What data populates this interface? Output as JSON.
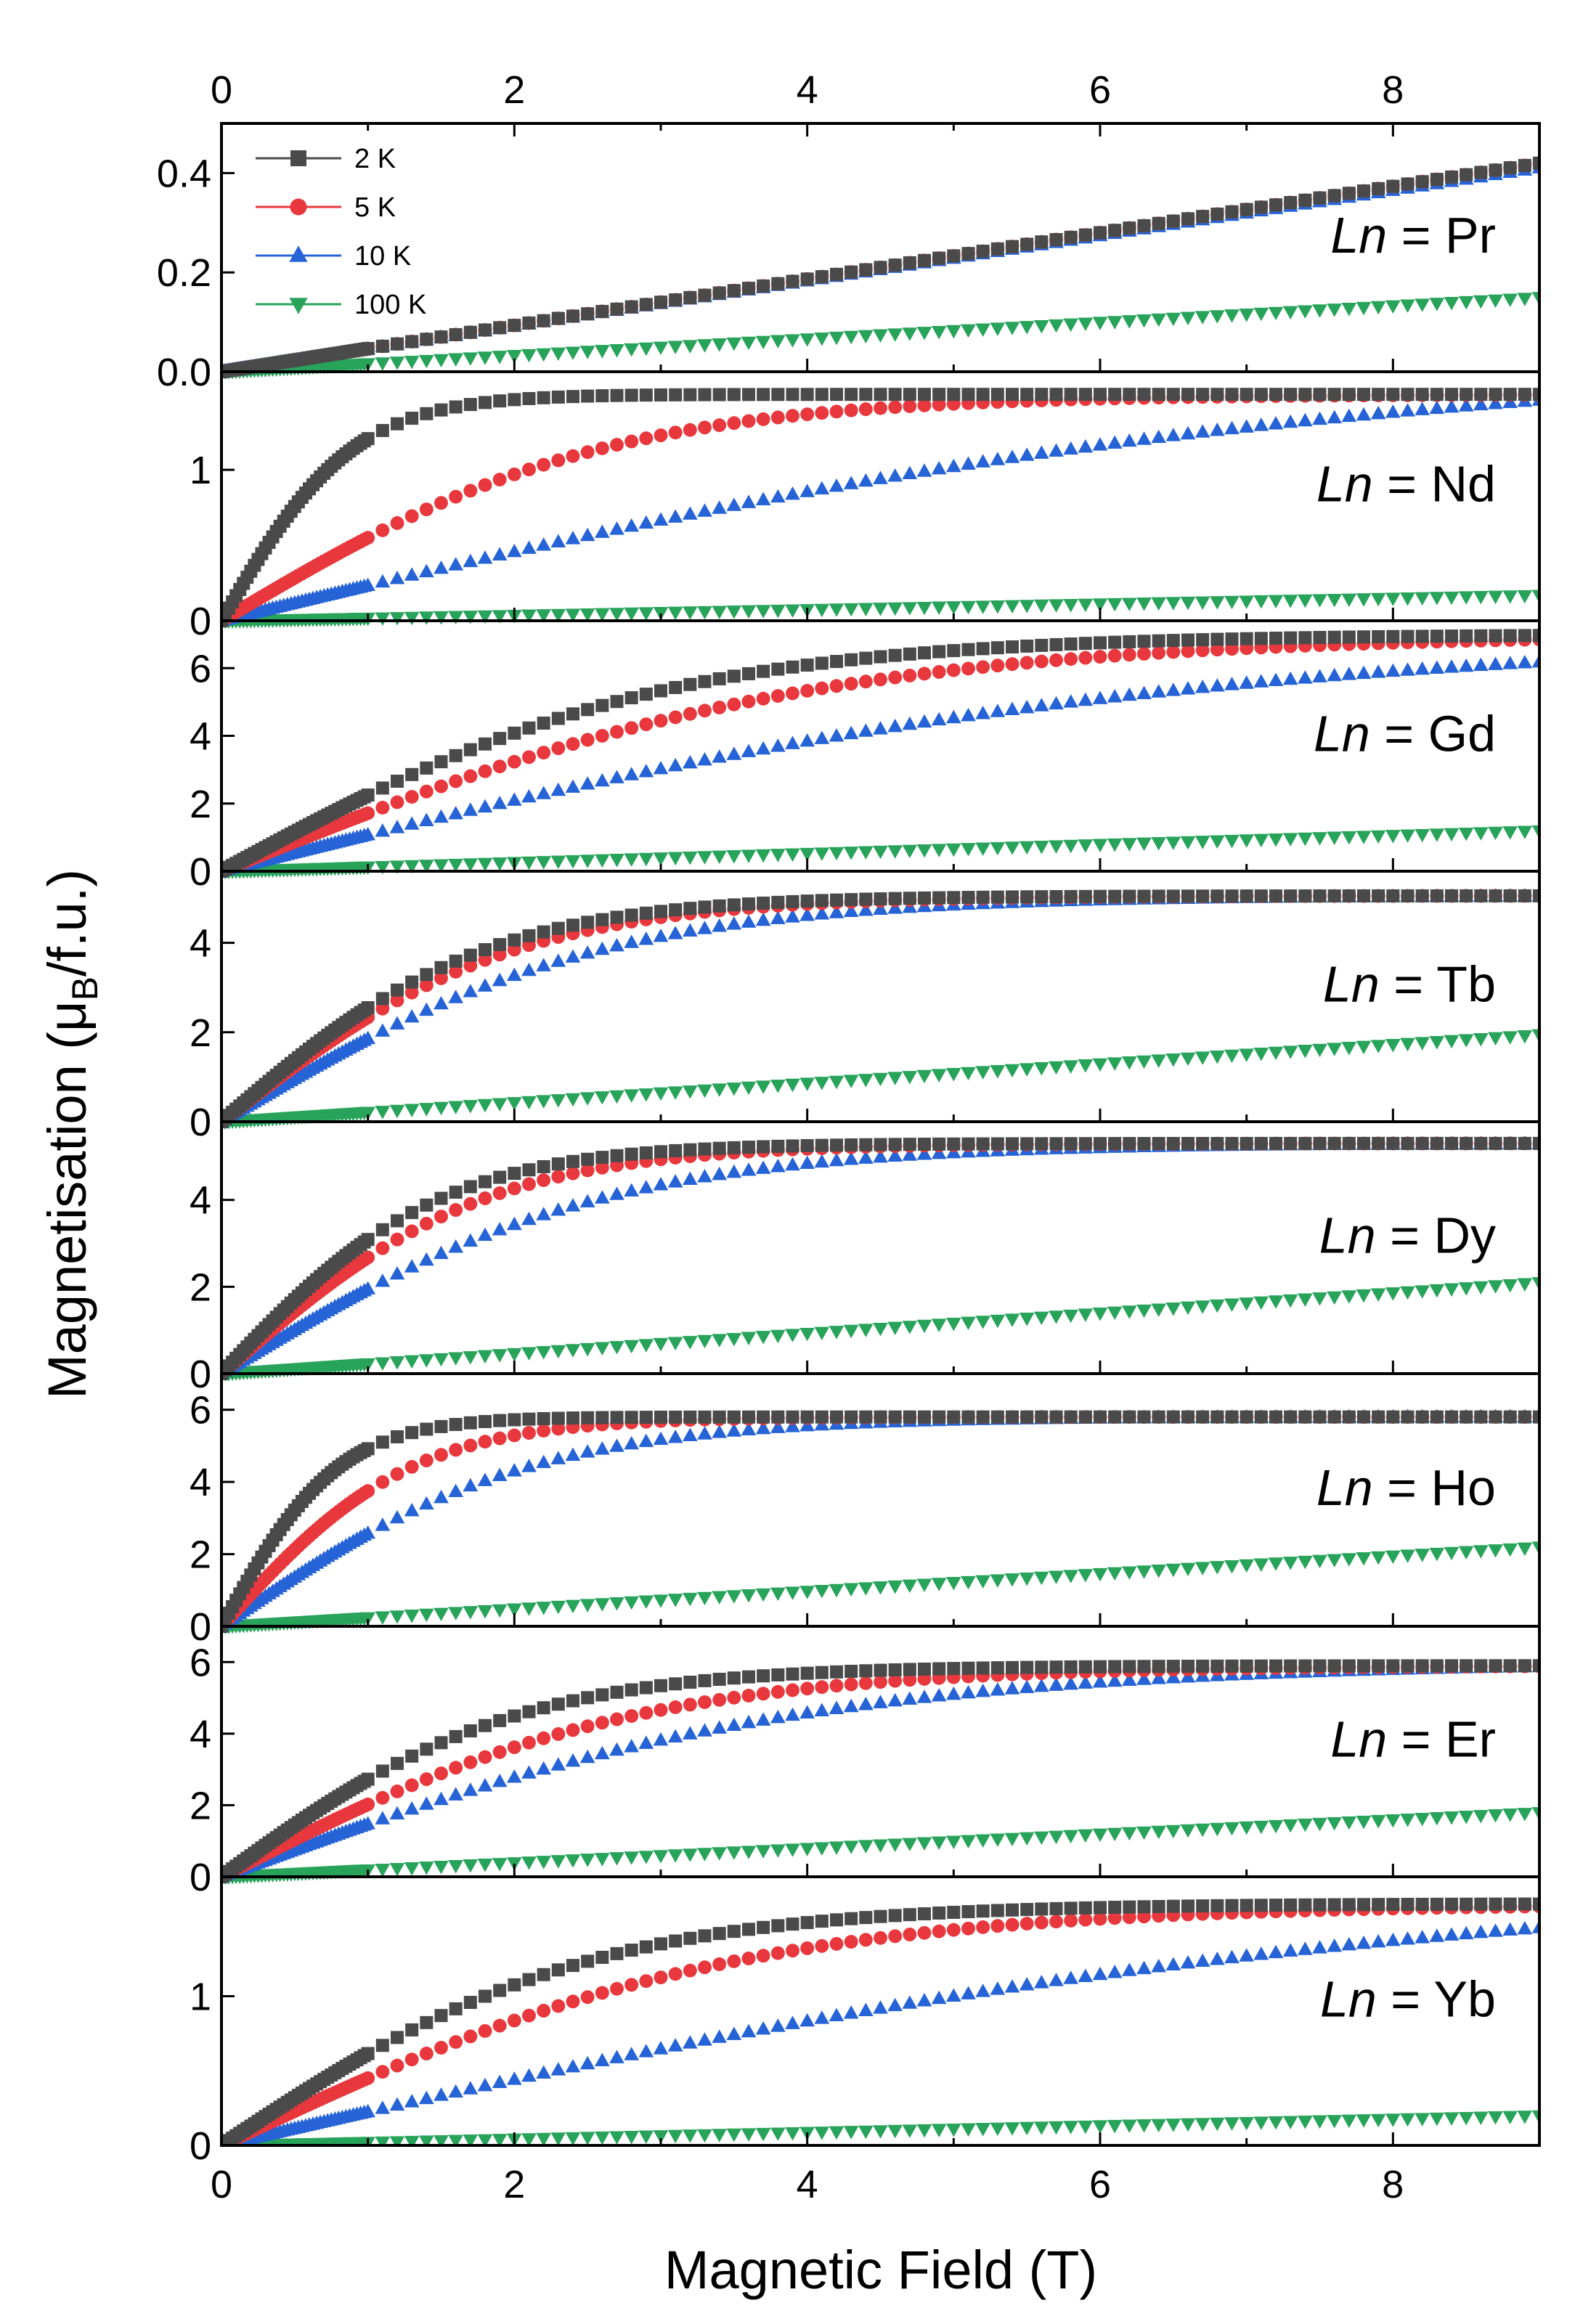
{
  "chart_data": {
    "type": "scatter",
    "xlabel": "Magnetic Field (T)",
    "ylabel_main": "Magnetisation (μ",
    "ylabel_sub": "B",
    "ylabel_tail": "/f.u.)",
    "xlim": [
      0,
      9
    ],
    "x_ticks": [
      0,
      2,
      4,
      6,
      8
    ],
    "series_styles": [
      {
        "name": "2 K",
        "color": "#4a4a4a",
        "marker": "square"
      },
      {
        "name": "5 K",
        "color": "#e8383d",
        "marker": "circle"
      },
      {
        "name": "10 K",
        "color": "#2563d6",
        "marker": "triangle-up"
      },
      {
        "name": "100 K",
        "color": "#27a35a",
        "marker": "triangle-down"
      }
    ],
    "panels": [
      {
        "label_prefix": "Ln",
        "label_suffix": " = Pr",
        "ylim": [
          0,
          0.5
        ],
        "yticks": [
          0,
          0.2,
          0.4
        ],
        "ytick_labels": [
          "0.0",
          "0.2",
          "0.4"
        ],
        "series": [
          {
            "name": "2 K",
            "sat": 0.42,
            "kind": "lin"
          },
          {
            "name": "5 K",
            "sat": 0.42,
            "kind": "lin"
          },
          {
            "name": "10 K",
            "sat": 0.41,
            "kind": "lin"
          },
          {
            "name": "100 K",
            "sat": 0.15,
            "kind": "lin"
          }
        ]
      },
      {
        "label_prefix": "Ln",
        "label_suffix": " = Nd",
        "ylim": [
          0,
          1.65
        ],
        "yticks": [
          0,
          1
        ],
        "ytick_labels": [
          "0",
          "1"
        ],
        "series": [
          {
            "name": "2 K",
            "sat": 1.5,
            "h0": 0.9,
            "kind": "tanh"
          },
          {
            "name": "5 K",
            "sat": 1.5,
            "h0": 2.6,
            "kind": "tanh"
          },
          {
            "name": "10 K",
            "sat": 1.75,
            "h0": 7.5,
            "kind": "tanh"
          },
          {
            "name": "100 K",
            "sat": 0.17,
            "kind": "lin"
          }
        ]
      },
      {
        "label_prefix": "Ln",
        "label_suffix": " = Gd",
        "ylim": [
          0,
          7.4
        ],
        "yticks": [
          0,
          2,
          4,
          6
        ],
        "ytick_labels": [
          "0",
          "2",
          "4",
          "6"
        ],
        "series": [
          {
            "name": "2 K",
            "sat": 7.0,
            "h0": 3.0,
            "kind": "tanh"
          },
          {
            "name": "5 K",
            "sat": 7.0,
            "h0": 4.0,
            "kind": "tanh"
          },
          {
            "name": "10 K",
            "sat": 7.0,
            "h0": 6.5,
            "kind": "tanh"
          },
          {
            "name": "100 K",
            "sat": 1.2,
            "kind": "lin"
          }
        ]
      },
      {
        "label_prefix": "Ln",
        "label_suffix": " = Tb",
        "ylim": [
          0,
          5.6
        ],
        "yticks": [
          0,
          2,
          4
        ],
        "ytick_labels": [
          "0",
          "2",
          "4"
        ],
        "series": [
          {
            "name": "2 K",
            "sat": 5.05,
            "h0": 1.8,
            "kind": "tanh"
          },
          {
            "name": "5 K",
            "sat": 5.05,
            "h0": 2.0,
            "kind": "tanh"
          },
          {
            "name": "10 K",
            "sat": 5.05,
            "h0": 2.6,
            "kind": "tanh"
          },
          {
            "name": "100 K",
            "sat": 1.95,
            "kind": "lin"
          }
        ]
      },
      {
        "label_prefix": "Ln",
        "label_suffix": " = Dy",
        "ylim": [
          0,
          5.8
        ],
        "yticks": [
          0,
          2,
          4
        ],
        "ytick_labels": [
          "0",
          "2",
          "4"
        ],
        "series": [
          {
            "name": "2 K",
            "sat": 5.3,
            "h0": 1.5,
            "kind": "tanh"
          },
          {
            "name": "5 K",
            "sat": 5.3,
            "h0": 1.8,
            "kind": "tanh"
          },
          {
            "name": "10 K",
            "sat": 5.3,
            "h0": 2.6,
            "kind": "tanh"
          },
          {
            "name": "100 K",
            "sat": 2.1,
            "kind": "lin"
          }
        ]
      },
      {
        "label_prefix": "Ln",
        "label_suffix": " = Ho",
        "ylim": [
          0,
          7.0
        ],
        "yticks": [
          0,
          2,
          4,
          6
        ],
        "ytick_labels": [
          "0",
          "2",
          "4",
          "6"
        ],
        "series": [
          {
            "name": "2 K",
            "sat": 5.8,
            "h0": 0.8,
            "kind": "tanh"
          },
          {
            "name": "5 K",
            "sat": 5.8,
            "h0": 1.3,
            "kind": "tanh"
          },
          {
            "name": "10 K",
            "sat": 5.8,
            "h0": 2.1,
            "kind": "tanh"
          },
          {
            "name": "100 K",
            "sat": 2.2,
            "kind": "lin"
          }
        ]
      },
      {
        "label_prefix": "Ln",
        "label_suffix": " = Er",
        "ylim": [
          0,
          7.0
        ],
        "yticks": [
          0,
          2,
          4,
          6
        ],
        "ytick_labels": [
          "0",
          "2",
          "4",
          "6"
        ],
        "series": [
          {
            "name": "2 K",
            "sat": 5.9,
            "h0": 2.0,
            "kind": "tanh"
          },
          {
            "name": "5 K",
            "sat": 5.9,
            "h0": 2.8,
            "kind": "tanh"
          },
          {
            "name": "10 K",
            "sat": 6.0,
            "h0": 4.0,
            "kind": "tanh"
          },
          {
            "name": "100 K",
            "sat": 1.8,
            "kind": "lin"
          }
        ]
      },
      {
        "label_prefix": "Ln",
        "label_suffix": " = Yb",
        "ylim": [
          0,
          1.8
        ],
        "yticks": [
          0,
          1
        ],
        "ytick_labels": [
          "0",
          "1"
        ],
        "series": [
          {
            "name": "2 K",
            "sat": 1.62,
            "h0": 2.5,
            "kind": "tanh"
          },
          {
            "name": "5 K",
            "sat": 1.62,
            "h0": 3.5,
            "kind": "tanh"
          },
          {
            "name": "10 K",
            "sat": 1.8,
            "h0": 8.0,
            "kind": "tanh"
          },
          {
            "name": "100 K",
            "sat": 0.2,
            "kind": "lin"
          }
        ]
      }
    ]
  }
}
